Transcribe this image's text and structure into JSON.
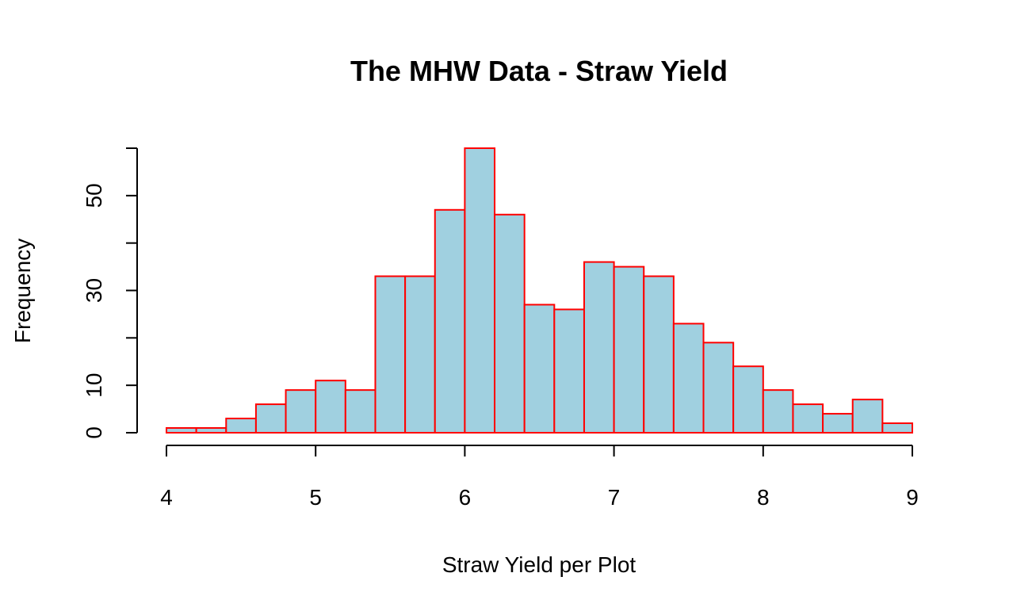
{
  "chart_data": {
    "type": "bar",
    "title": "The MHW Data - Straw Yield",
    "xlabel": "Straw Yield per Plot",
    "ylabel": "Frequency",
    "bin_edges": [
      4.0,
      4.2,
      4.4,
      4.6,
      4.8,
      5.0,
      5.2,
      5.4,
      5.6,
      5.8,
      6.0,
      6.2,
      6.4,
      6.6,
      6.8,
      7.0,
      7.2,
      7.4,
      7.6,
      7.8,
      8.0,
      8.2,
      8.4,
      8.6,
      8.8,
      9.0
    ],
    "values": [
      1,
      1,
      3,
      6,
      9,
      11,
      9,
      33,
      33,
      47,
      60,
      46,
      27,
      26,
      36,
      35,
      33,
      23,
      19,
      14,
      9,
      6,
      4,
      7,
      2
    ],
    "xlim": [
      4,
      9
    ],
    "ylim": [
      0,
      60
    ],
    "x_ticks": [
      4,
      5,
      6,
      7,
      8,
      9
    ],
    "x_tick_labels": [
      "4",
      "5",
      "6",
      "7",
      "8",
      "9"
    ],
    "y_ticks": [
      0,
      10,
      20,
      30,
      40,
      50,
      60
    ],
    "y_tick_labels": [
      "0",
      "10",
      "",
      "30",
      "",
      "50",
      ""
    ],
    "bar_fill": "#a0d0e0",
    "bar_border": "#ff0000",
    "grid": false,
    "legend": "none"
  }
}
